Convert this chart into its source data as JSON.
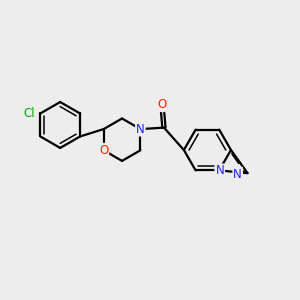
{
  "bg_color": "#ededee",
  "bond_color": "#000000",
  "bond_width": 1.6,
  "atom_colors": {
    "Cl": "#00aa00",
    "O": "#ff2200",
    "N": "#2222ff"
  },
  "font_size_atom": 8.5,
  "fig_size": [
    3.0,
    3.0
  ],
  "dpi": 100
}
